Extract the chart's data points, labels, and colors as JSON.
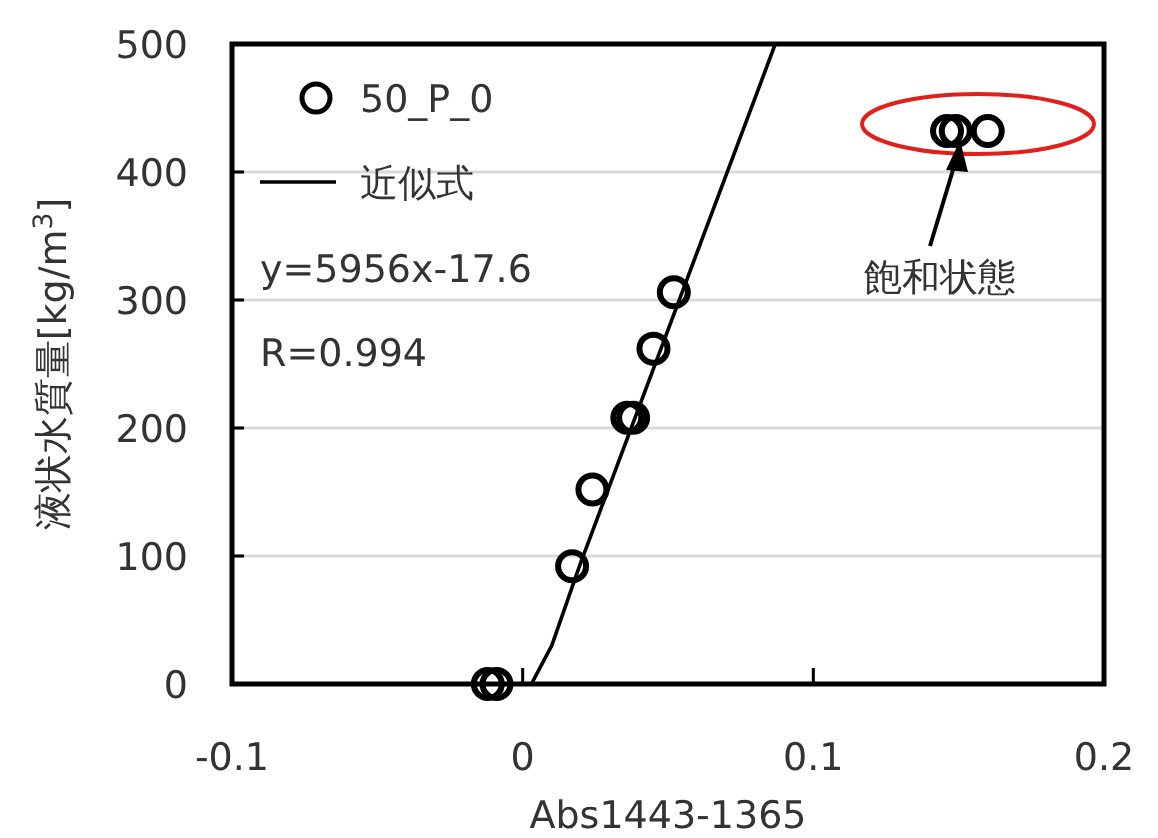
{
  "chart_data": {
    "type": "scatter",
    "xlabel": "Abs1443-1365",
    "ylabel": "液状水質量[kg/m$^{3}$]",
    "xlim": [
      -0.1,
      0.2
    ],
    "xticks": [
      -0.1,
      0,
      0.1,
      0.2
    ],
    "ylim": [
      0,
      500
    ],
    "yticks": [
      0,
      100,
      200,
      300,
      400,
      500
    ],
    "grid": "y",
    "legend": "top left",
    "series": [
      {
        "name": "50_P_0",
        "marker": "circle",
        "color": "#000000",
        "x": [
          -0.012,
          -0.009,
          0.017,
          0.024,
          0.036,
          0.038,
          0.045,
          0.052,
          0.146,
          0.149,
          0.16
        ],
        "values": [
          0,
          0,
          92,
          152,
          208,
          208,
          262,
          306,
          432,
          432,
          432
        ]
      },
      {
        "name": "近似式",
        "type": "line",
        "color": "#000000",
        "x": [
          0.003,
          0.01,
          0.02,
          0.0869
        ],
        "values": [
          0,
          30,
          95,
          500
        ]
      }
    ],
    "annotations": [
      "y=5956x-17.6",
      "R=0.994",
      "飽和状態"
    ]
  }
}
